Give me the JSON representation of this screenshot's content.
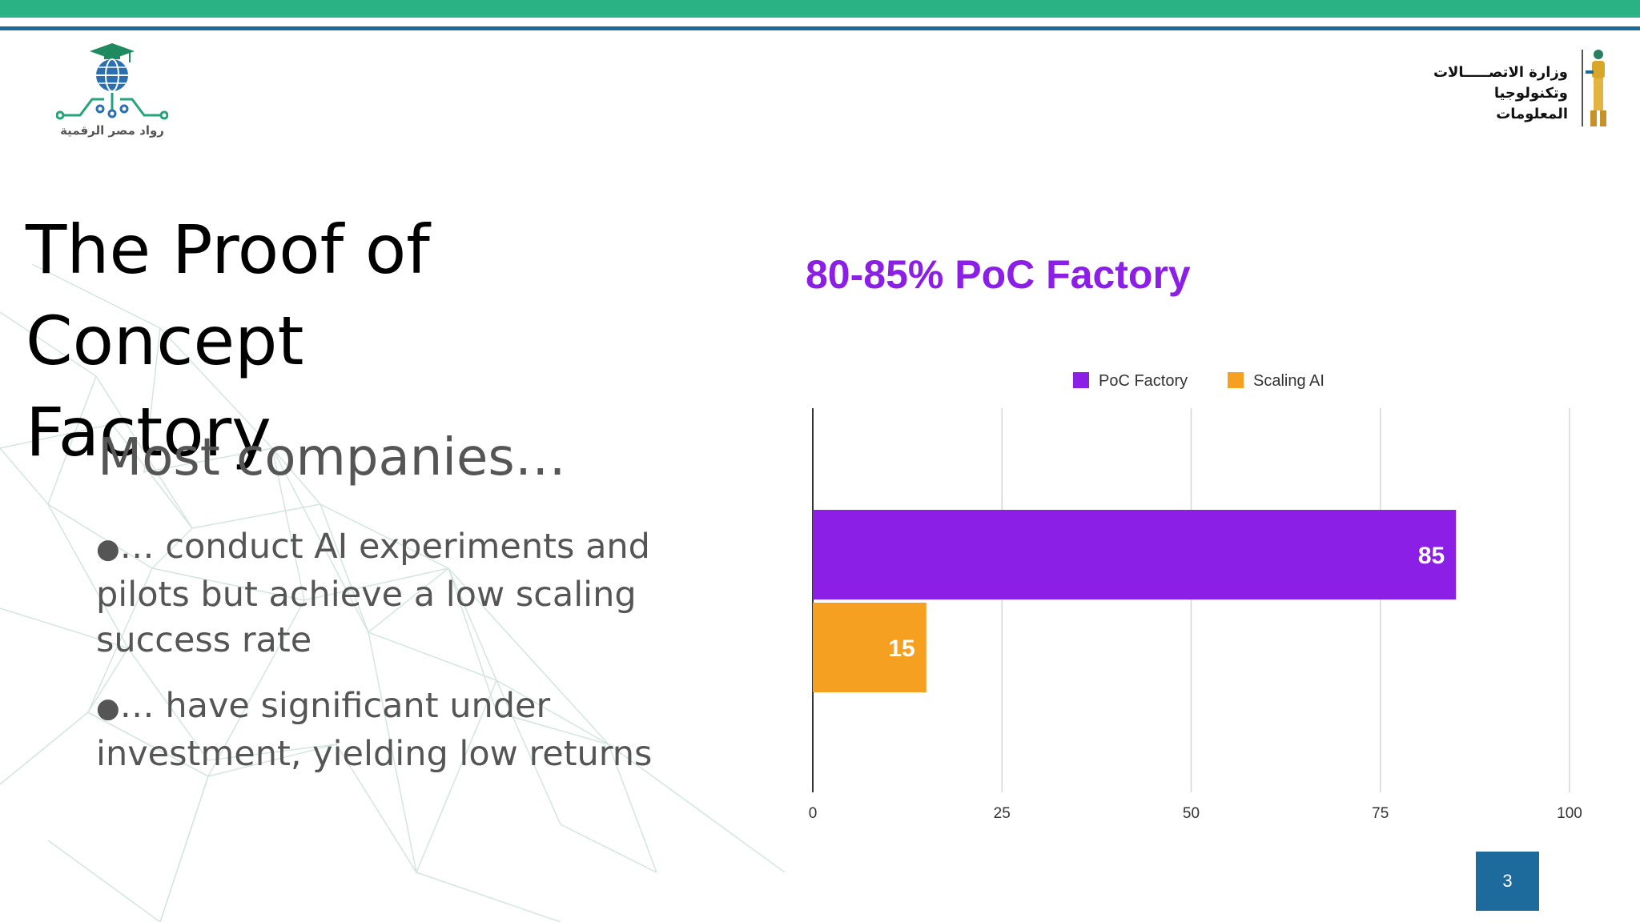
{
  "header": {
    "left_logo_caption": "رواد مصر الرقمية",
    "right_logo_line1": "وزارة الاتصـــــالات",
    "right_logo_line2": "وتكنولوجيا المعلومات"
  },
  "slide": {
    "title_line1": "The Proof of Concept",
    "title_line2": "Factory",
    "subheading": "Most companies…",
    "bullets": [
      "… conduct AI experiments and pilots  but achieve a low scaling success rate",
      "… have significant under investment,  yielding low returns"
    ],
    "bullet_marker": "●",
    "page_number": "3"
  },
  "colors": {
    "green_band": "#2bb284",
    "blue_line": "#1d6a9c",
    "poc": "#8b1fe6",
    "scaling": "#f6a022"
  },
  "chart_data": {
    "type": "bar",
    "orientation": "horizontal",
    "title": "80-85% PoC Factory",
    "series": [
      {
        "name": "PoC Factory",
        "value": 85,
        "color": "#8b1fe6"
      },
      {
        "name": "Scaling AI",
        "value": 15,
        "color": "#f6a022"
      }
    ],
    "xlim": [
      0,
      100
    ],
    "xticks": [
      0,
      25,
      50,
      75,
      100
    ],
    "grid": true,
    "legend": "top-center"
  }
}
